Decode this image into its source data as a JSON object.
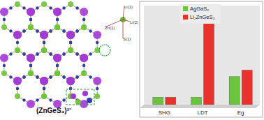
{
  "chart_data": {
    "type": "bar",
    "categories": [
      "SHG",
      "LDT",
      "Eg"
    ],
    "series": [
      {
        "name": "AgGaS₂",
        "color": "#6ac53c",
        "values": [
          8,
          8,
          30
        ]
      },
      {
        "name": "Li₂ZnGeS₄",
        "color": "#e8322b",
        "values": [
          8,
          90,
          37
        ]
      }
    ],
    "ylim": [
      0,
      100
    ],
    "tick_labels": "x",
    "legend": "top-left",
    "grid": false
  },
  "diagram": {
    "cluster_label": "(ZnGeS₄)²⁻",
    "site_labels": [
      "Li(1)",
      "Li(2)",
      "Zn(1)",
      "S(1)"
    ]
  }
}
